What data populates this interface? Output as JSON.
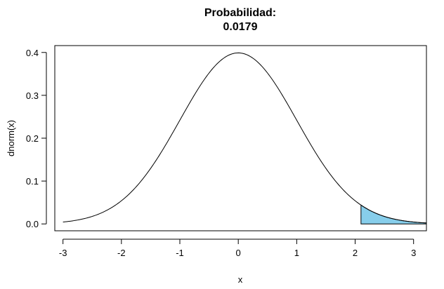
{
  "chart_data": {
    "type": "area",
    "title_line1": "Probabilidad:",
    "title_line2": "0.0179",
    "xlabel": "x",
    "ylabel": "dnorm(x)",
    "xlim": [
      -3.0,
      3.22
    ],
    "ylim": [
      -0.016,
      0.416
    ],
    "x_ticks": [
      -3,
      -2,
      -1,
      0,
      1,
      2,
      3
    ],
    "y_ticks": [
      0.0,
      0.1,
      0.2,
      0.3,
      0.4
    ],
    "x_tick_labels": [
      "-3",
      "-2",
      "-1",
      "0",
      "1",
      "2",
      "3"
    ],
    "y_tick_labels": [
      "0.0",
      "0.1",
      "0.2",
      "0.3",
      "0.4"
    ],
    "curve": {
      "function": "dnorm",
      "mean": 0,
      "sd": 1,
      "x_from": -3.0,
      "x_to": 3.22,
      "color": "#000000"
    },
    "shaded_region": {
      "x_from": 2.1,
      "x_to": 3.22,
      "probability": 0.0179,
      "fill": "#87CEEB"
    },
    "grid": false
  }
}
